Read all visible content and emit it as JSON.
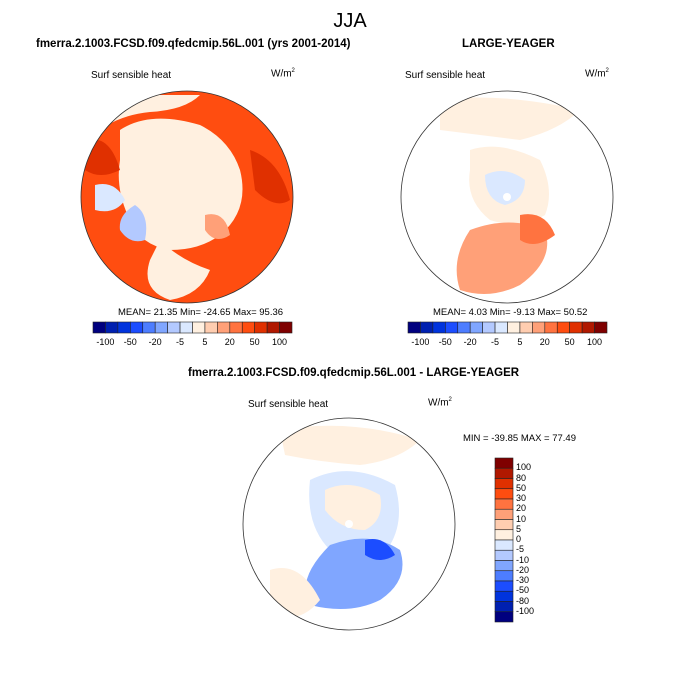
{
  "figure": {
    "main_title": "JJA"
  },
  "colorscale": {
    "colors": [
      "#00007f",
      "#0020b0",
      "#0033dd",
      "#1c4dff",
      "#4d7dff",
      "#80a6ff",
      "#b3c9ff",
      "#dae8ff",
      "#fff0e0",
      "#ffcdb0",
      "#ffa078",
      "#ff7340",
      "#ff4d10",
      "#e03000",
      "#b01800",
      "#7f0000"
    ],
    "tick_labels_horizontal": [
      "-100",
      "-50",
      "-20",
      "-5",
      "5",
      "20",
      "50",
      "100"
    ],
    "tick_labels_vertical": [
      "100",
      "80",
      "50",
      "30",
      "20",
      "10",
      "5",
      "0",
      "-5",
      "-10",
      "-20",
      "-30",
      "-50",
      "-80",
      "-100"
    ]
  },
  "chart_data": [
    {
      "type": "heatmap",
      "projection": "north-polar-stereographic",
      "title": "fmerra.2.1003.FCSD.f09.qfedcmip.56L.001 (yrs 2001-2014)",
      "variable": "Surf sensible heat",
      "units_base": "W/m",
      "units_exp": "2",
      "stats": {
        "mean": "21.35",
        "min": "-24.65",
        "max": "95.36"
      },
      "stats_text": "MEAN=  21.35  Min= -24.65  Max=  95.36",
      "colorbar": {
        "orientation": "horizontal",
        "levels": [
          -100,
          -80,
          -50,
          -30,
          -20,
          -10,
          -5,
          0,
          5,
          10,
          20,
          30,
          50,
          80,
          100
        ],
        "labels": [
          "-100",
          "-50",
          "-20",
          "-5",
          "5",
          "20",
          "50",
          "100"
        ]
      }
    },
    {
      "type": "heatmap",
      "projection": "north-polar-stereographic",
      "title": "LARGE-YEAGER",
      "variable": "Surf sensible heat",
      "units_base": "W/m",
      "units_exp": "2",
      "stats": {
        "mean": "4.03",
        "min": "-9.13",
        "max": "50.52"
      },
      "stats_text": "MEAN=  4.03  Min=  -9.13  Max=  50.52",
      "colorbar": {
        "orientation": "horizontal",
        "levels": [
          -100,
          -80,
          -50,
          -30,
          -20,
          -10,
          -5,
          0,
          5,
          10,
          20,
          30,
          50,
          80,
          100
        ],
        "labels": [
          "-100",
          "-50",
          "-20",
          "-5",
          "5",
          "20",
          "50",
          "100"
        ]
      }
    },
    {
      "type": "heatmap",
      "projection": "north-polar-stereographic",
      "title": "fmerra.2.1003.FCSD.f09.qfedcmip.56L.001 - LARGE-YEAGER",
      "variable": "Surf sensible heat",
      "units_base": "W/m",
      "units_exp": "2",
      "stats": {
        "min": "-39.85",
        "max": "77.49"
      },
      "stats_text": "MIN = -39.85 MAX =  77.49",
      "colorbar": {
        "orientation": "vertical",
        "levels": [
          -100,
          -80,
          -50,
          -30,
          -20,
          -10,
          -5,
          0,
          5,
          10,
          20,
          30,
          50,
          80,
          100
        ],
        "labels": [
          "100",
          "80",
          "50",
          "30",
          "20",
          "10",
          "5",
          "0",
          "-5",
          "-10",
          "-20",
          "-30",
          "-50",
          "-80",
          "-100"
        ]
      }
    }
  ]
}
